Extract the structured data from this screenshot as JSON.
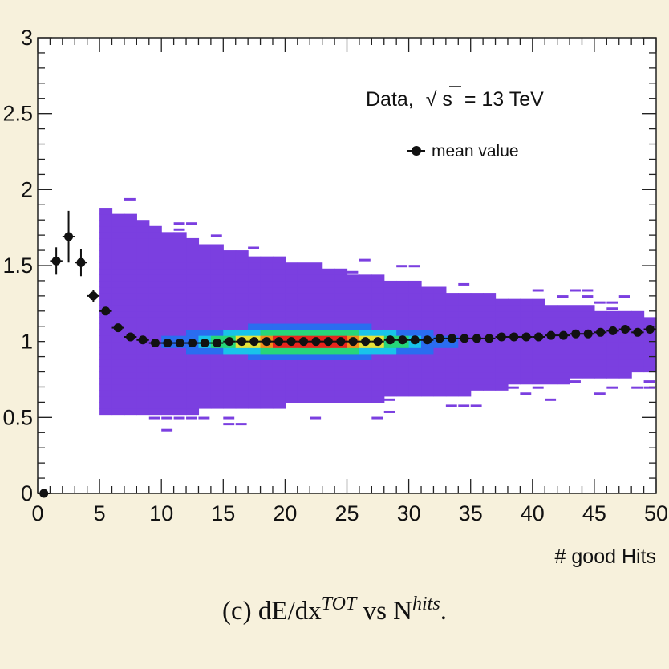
{
  "chart_data": {
    "type": "heatmap",
    "title": "",
    "xlabel": "# good Hits",
    "ylabel": "",
    "xlim": [
      0,
      50
    ],
    "ylim": [
      0,
      3
    ],
    "x_ticks": [
      "0",
      "5",
      "10",
      "15",
      "20",
      "25",
      "30",
      "35",
      "40",
      "45",
      "50"
    ],
    "y_ticks": [
      "0",
      "0.5",
      "1",
      "1.5",
      "2",
      "2.5",
      "3"
    ],
    "annotation": {
      "data_label": "Data,",
      "sqrt_symbol": "√",
      "sqrt_arg": "s",
      "energy": "= 13 TeV"
    },
    "legend": {
      "label": "mean value",
      "placement": "top-right"
    },
    "colormap": [
      "#7b3fe0",
      "#2a6df0",
      "#19c3ea",
      "#27d67a",
      "#e6e23a",
      "#f28a1c",
      "#e8241c"
    ],
    "density_peak": {
      "x": 22,
      "y": 1.0
    },
    "series": [
      {
        "name": "mean value",
        "x": [
          0.5,
          1.5,
          2.5,
          3.5,
          4.5,
          5.5,
          6.5,
          7.5,
          8.5,
          9.5,
          10.5,
          11.5,
          12.5,
          13.5,
          14.5,
          15.5,
          16.5,
          17.5,
          18.5,
          19.5,
          20.5,
          21.5,
          22.5,
          23.5,
          24.5,
          25.5,
          26.5,
          27.5,
          28.5,
          29.5,
          30.5,
          31.5,
          32.5,
          33.5,
          34.5,
          35.5,
          36.5,
          37.5,
          38.5,
          39.5,
          40.5,
          41.5,
          42.5,
          43.5,
          44.5,
          45.5,
          46.5,
          47.5,
          48.5,
          49.5
        ],
        "y": [
          0.0,
          1.53,
          1.69,
          1.52,
          1.3,
          1.2,
          1.09,
          1.03,
          1.01,
          0.99,
          0.99,
          0.99,
          0.99,
          0.99,
          0.99,
          1.0,
          1.0,
          1.0,
          1.0,
          1.0,
          1.0,
          1.0,
          1.0,
          1.0,
          1.0,
          1.0,
          1.0,
          1.0,
          1.01,
          1.01,
          1.01,
          1.01,
          1.02,
          1.02,
          1.02,
          1.02,
          1.02,
          1.03,
          1.03,
          1.03,
          1.03,
          1.04,
          1.04,
          1.05,
          1.05,
          1.06,
          1.07,
          1.08,
          1.06,
          1.08
        ],
        "yerr": [
          0.0,
          0.09,
          0.17,
          0.09,
          0.04,
          0.02,
          0.01,
          0.01,
          0.01,
          0.01,
          0.01,
          0.01,
          0.01,
          0.01,
          0.01,
          0.01,
          0.01,
          0.01,
          0.01,
          0.01,
          0.01,
          0.01,
          0.01,
          0.01,
          0.01,
          0.01,
          0.01,
          0.01,
          0.01,
          0.01,
          0.01,
          0.01,
          0.01,
          0.01,
          0.01,
          0.01,
          0.01,
          0.01,
          0.01,
          0.01,
          0.01,
          0.01,
          0.01,
          0.01,
          0.01,
          0.01,
          0.01,
          0.01,
          0.02,
          0.02
        ]
      }
    ]
  },
  "caption": {
    "prefix": "(c) dE/dx",
    "sup1": "TOT",
    "middle": " vs N",
    "sup2": "hits",
    "suffix": "."
  }
}
